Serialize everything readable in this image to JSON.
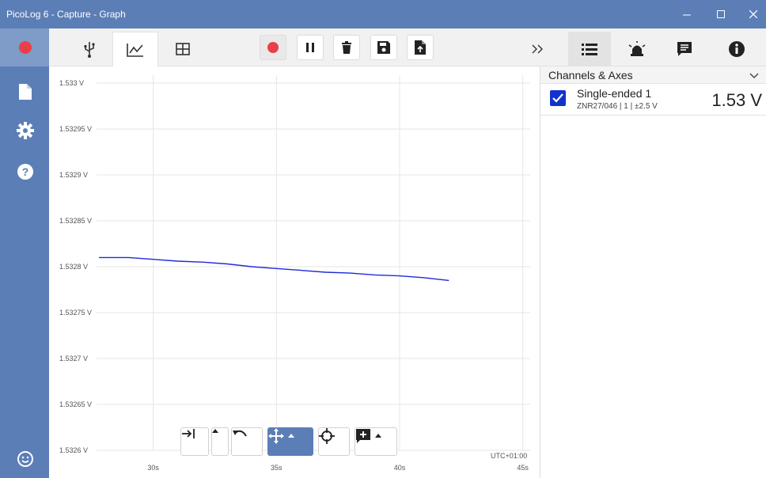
{
  "window": {
    "title": "PicoLog 6 - Capture - Graph",
    "controls": [
      "minimize-icon",
      "maximize-icon",
      "close-icon"
    ]
  },
  "left_nav": {
    "items": [
      "record-icon",
      "document-icon",
      "settings-gear-icon",
      "help-icon",
      "feedback-smiley-icon"
    ]
  },
  "toolbar": {
    "tabs": [
      {
        "name": "devices",
        "icon": "usb-icon"
      },
      {
        "name": "graph",
        "icon": "graph-icon",
        "active": true
      },
      {
        "name": "table",
        "icon": "table-icon"
      }
    ],
    "buttons": [
      "record-icon",
      "pause-icon",
      "delete-icon",
      "save-icon",
      "export-icon"
    ]
  },
  "right_toolbar": {
    "buttons": [
      {
        "icon": "collapse-chevrons-icon"
      },
      {
        "icon": "channels-list-icon",
        "active": true
      },
      {
        "icon": "alarm-icon"
      },
      {
        "icon": "notes-icon"
      },
      {
        "icon": "info-icon"
      }
    ]
  },
  "chart_data": {
    "type": "line",
    "y_ticks": [
      "1.533 V",
      "1.53295 V",
      "1.5329 V",
      "1.53285 V",
      "1.5328 V",
      "1.53275 V",
      "1.5327 V",
      "1.53265 V",
      "1.5326 V"
    ],
    "x_ticks": [
      "30s",
      "35s",
      "40s",
      "45s"
    ],
    "timezone_label": "UTC+01:00",
    "series": [
      {
        "color": "#1f2bd9",
        "x": [
          27.8,
          29.0,
          30.0,
          31.0,
          32.0,
          33.0,
          34.0,
          35.0,
          36.0,
          37.0,
          38.0,
          39.0,
          40.0,
          41.0,
          42.0
        ],
        "y": [
          1.53281,
          1.53281,
          1.532808,
          1.532806,
          1.532805,
          1.532803,
          1.5328,
          1.532798,
          1.532796,
          1.532794,
          1.532793,
          1.532791,
          1.53279,
          1.532788,
          1.532785
        ]
      }
    ],
    "ylim": [
      1.5326,
      1.533
    ],
    "xlim": [
      27.7,
      45.3
    ],
    "grid": true
  },
  "chart_tools": [
    "go-to-end-icon",
    "caret-up-icon",
    "undo-icon",
    "pan-icon",
    "crosshair-icon",
    "add-annotation-icon"
  ],
  "panel": {
    "section_title": "Channels & Axes",
    "channel": {
      "name": "Single-ended 1",
      "details": "ZNR27/046 | 1 | ±2.5 V",
      "value": "1.53 V",
      "checked": true,
      "color": "#1133cc"
    }
  },
  "colors": {
    "accent": "#5b7eb6",
    "record": "#e8404b",
    "series": "#1f2bd9"
  }
}
